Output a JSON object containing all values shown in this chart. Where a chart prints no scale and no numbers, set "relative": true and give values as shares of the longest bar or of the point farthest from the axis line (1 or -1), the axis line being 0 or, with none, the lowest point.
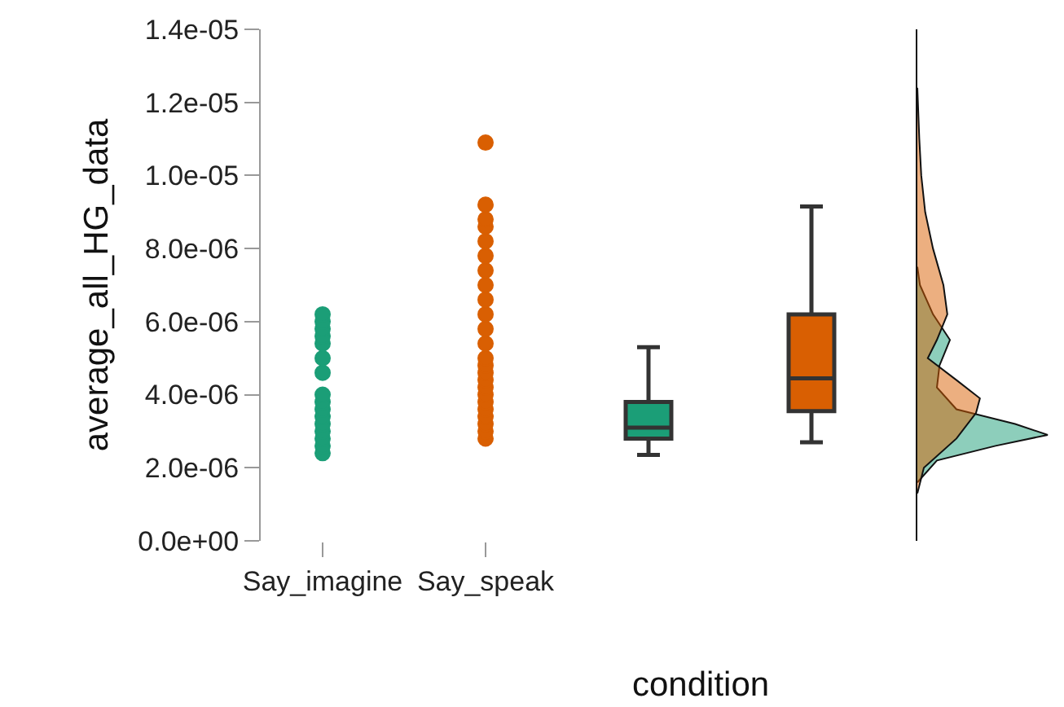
{
  "chart_data": [
    {
      "type": "box",
      "xlabel": "condition",
      "ylabel": "average_all_HG_data",
      "categories": [
        "Say_imagine",
        "Say_speak",
        null,
        null
      ],
      "colors": [
        "#1b9e77",
        "#d95f02",
        "#1b9e77",
        "#d95f02"
      ],
      "marker": "circle",
      "ylim": [
        0,
        1.4e-05
      ],
      "yticks": [
        {
          "value": 0,
          "label": "0.0e+00"
        },
        {
          "value": 2e-06,
          "label": "2.0e-06"
        },
        {
          "value": 4e-06,
          "label": "4.0e-06"
        },
        {
          "value": 6e-06,
          "label": "6.0e-06"
        },
        {
          "value": 8e-06,
          "label": "8.0e-06"
        },
        {
          "value": 1e-05,
          "label": "1.0e-05"
        },
        {
          "value": 1.2e-05,
          "label": "1.2e-05"
        },
        {
          "value": 1.4e-05,
          "label": "1.4e-05"
        }
      ],
      "boxes": [
        null,
        null,
        {
          "low": 2.35e-06,
          "q1": 2.8e-06,
          "median": 3.1e-06,
          "q3": 3.8e-06,
          "high": 5.3e-06
        },
        {
          "low": 2.7e-06,
          "q1": 3.55e-06,
          "median": 4.45e-06,
          "q3": 6.2e-06,
          "high": 9.15e-06
        }
      ],
      "series": [
        {
          "type": "scatter",
          "color": "#1b9e77",
          "x": [
            "Say_imagine",
            "Say_imagine",
            "Say_imagine",
            "Say_imagine",
            "Say_imagine",
            "Say_imagine",
            "Say_imagine",
            "Say_imagine",
            "Say_imagine",
            "Say_imagine",
            "Say_imagine",
            "Say_imagine",
            "Say_imagine",
            "Say_imagine",
            "Say_imagine",
            "Say_imagine"
          ],
          "values": [
            2.4e-06,
            2.6e-06,
            2.8e-06,
            3e-06,
            3.2e-06,
            3.4e-06,
            3.6e-06,
            3.8e-06,
            4e-06,
            4.6e-06,
            5e-06,
            5.4e-06,
            5.6e-06,
            5.8e-06,
            6e-06,
            6.2e-06
          ]
        },
        {
          "type": "scatter",
          "color": "#d95f02",
          "x": [
            "Say_speak",
            "Say_speak",
            "Say_speak",
            "Say_speak",
            "Say_speak",
            "Say_speak",
            "Say_speak",
            "Say_speak",
            "Say_speak",
            "Say_speak",
            "Say_speak",
            "Say_speak",
            "Say_speak",
            "Say_speak",
            "Say_speak",
            "Say_speak",
            "Say_speak",
            "Say_speak",
            "Say_speak",
            "Say_speak",
            "Say_speak",
            "Say_speak",
            "Say_speak",
            "Say_speak"
          ],
          "values": [
            2.8e-06,
            3e-06,
            3.2e-06,
            3.4e-06,
            3.6e-06,
            3.8e-06,
            4e-06,
            4.2e-06,
            4.4e-06,
            4.6e-06,
            4.8e-06,
            5e-06,
            5.4e-06,
            5.8e-06,
            6.2e-06,
            6.6e-06,
            7e-06,
            7.4e-06,
            7.8e-06,
            8.2e-06,
            8.6e-06,
            8.8e-06,
            9.2e-06,
            1.09e-05
          ]
        }
      ]
    },
    {
      "type": "area",
      "orientation": "horizontal",
      "relative": true,
      "tick_labels": false,
      "ylim": [
        0,
        1.4e-05
      ],
      "series": [
        {
          "color": "#1b9e77",
          "x": [
            1.6e-06,
            2.2e-06,
            2.6e-06,
            2.9e-06,
            3.2e-06,
            3.6e-06,
            4.2e-06,
            4.8e-06,
            5.5e-06,
            6.2e-06,
            7e-06,
            7.5e-06
          ],
          "values": [
            0,
            0.15,
            0.6,
            1,
            0.75,
            0.3,
            0.15,
            0.17,
            0.25,
            0.12,
            0.02,
            0
          ]
        },
        {
          "color": "#d95f02",
          "x": [
            1.3e-06,
            2e-06,
            2.8e-06,
            3.5e-06,
            3.9e-06,
            4.4e-06,
            5e-06,
            5.5e-06,
            6.2e-06,
            7e-06,
            8e-06,
            9e-06,
            1e-05,
            1.1e-05,
            1.24e-05
          ],
          "values": [
            0,
            0.05,
            0.3,
            0.45,
            0.48,
            0.3,
            0.08,
            0.15,
            0.23,
            0.2,
            0.12,
            0.06,
            0.03,
            0.015,
            0
          ]
        }
      ]
    }
  ]
}
